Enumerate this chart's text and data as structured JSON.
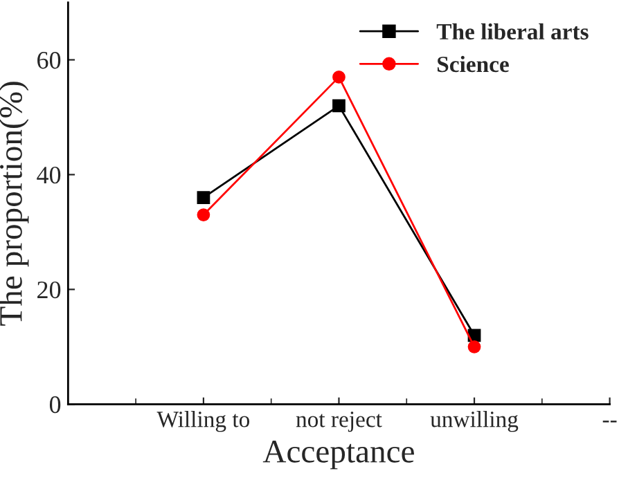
{
  "chart_data": {
    "type": "line",
    "xlabel": "Acceptance",
    "ylabel": "The proportion(%)",
    "categories": [
      "Willing to",
      "not reject",
      "unwilling",
      "--"
    ],
    "series": [
      {
        "name": "The liberal arts",
        "color": "#000000",
        "marker": "square",
        "values": [
          36,
          52,
          12,
          null
        ]
      },
      {
        "name": "Science",
        "color": "#ff0000",
        "marker": "circle",
        "values": [
          33,
          57,
          10,
          null
        ]
      }
    ],
    "ylim": [
      0,
      70
    ],
    "yticks": [
      0,
      20,
      40,
      60
    ],
    "grid": false,
    "legend": "top right",
    "line_style": "solid"
  }
}
